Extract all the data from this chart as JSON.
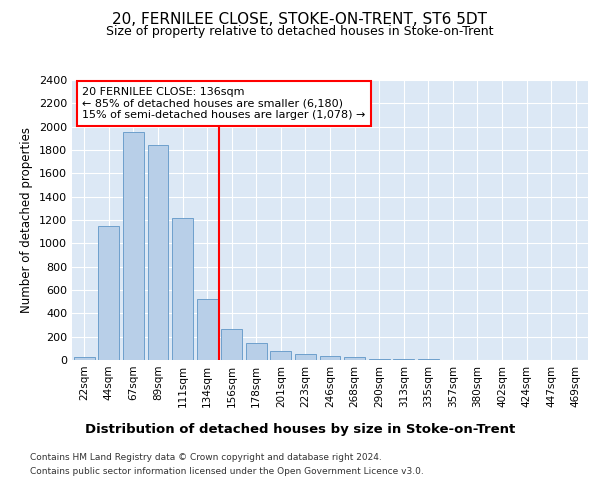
{
  "title": "20, FERNILEE CLOSE, STOKE-ON-TRENT, ST6 5DT",
  "subtitle": "Size of property relative to detached houses in Stoke-on-Trent",
  "xlabel": "Distribution of detached houses by size in Stoke-on-Trent",
  "ylabel": "Number of detached properties",
  "categories": [
    "22sqm",
    "44sqm",
    "67sqm",
    "89sqm",
    "111sqm",
    "134sqm",
    "156sqm",
    "178sqm",
    "201sqm",
    "223sqm",
    "246sqm",
    "268sqm",
    "290sqm",
    "313sqm",
    "335sqm",
    "357sqm",
    "380sqm",
    "402sqm",
    "424sqm",
    "447sqm",
    "469sqm"
  ],
  "values": [
    30,
    1150,
    1950,
    1840,
    1220,
    520,
    270,
    150,
    80,
    50,
    35,
    30,
    10,
    8,
    5,
    4,
    3,
    2,
    2,
    1,
    1
  ],
  "bar_color": "#b8cfe8",
  "bar_edge_color": "#6ea0cc",
  "vline_color": "red",
  "vline_x": 5.5,
  "annotation_text": "20 FERNILEE CLOSE: 136sqm\n← 85% of detached houses are smaller (6,180)\n15% of semi-detached houses are larger (1,078) →",
  "annotation_box_facecolor": "white",
  "annotation_box_edgecolor": "red",
  "ylim_max": 2400,
  "yticks": [
    0,
    200,
    400,
    600,
    800,
    1000,
    1200,
    1400,
    1600,
    1800,
    2000,
    2200,
    2400
  ],
  "axes_bg": "#dce8f5",
  "grid_color": "white",
  "footer1": "Contains HM Land Registry data © Crown copyright and database right 2024.",
  "footer2": "Contains public sector information licensed under the Open Government Licence v3.0."
}
